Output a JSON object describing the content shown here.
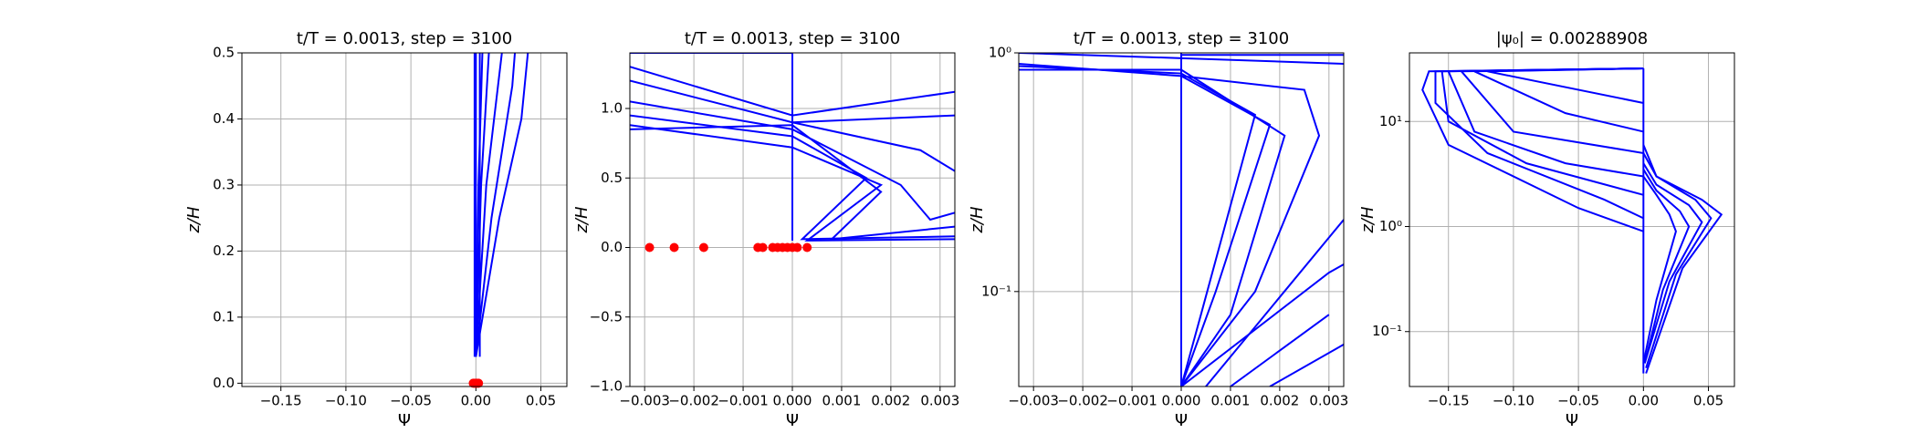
{
  "chart_data": [
    {
      "type": "line",
      "title": "t/T = 0.0013, step = 3100",
      "xlabel": "Ψ",
      "ylabel": "z/H",
      "grid": true,
      "yscale": "linear",
      "xlim": [
        -0.18,
        0.07
      ],
      "ylim": [
        -0.005,
        0.5
      ],
      "xticks": [
        {
          "value": -0.15,
          "label": "−0.15"
        },
        {
          "value": -0.1,
          "label": "−0.10"
        },
        {
          "value": -0.05,
          "label": "−0.05"
        },
        {
          "value": 0,
          "label": "0.00"
        },
        0.05
      ],
      "yticks": [
        {
          "value": 0,
          "label": "0.0"
        },
        0.1,
        0.2,
        0.3,
        0.4,
        0.5
      ],
      "series": [
        {
          "color": "#0000ff",
          "x": [
            -0.001,
            -0.001
          ],
          "values": [
            0.04,
            0.5
          ]
        },
        {
          "color": "#0000ff",
          "x": [
            0.0,
            0.0
          ],
          "values": [
            0.04,
            0.5
          ]
        },
        {
          "color": "#0000ff",
          "x": [
            0.003,
            0.003
          ],
          "values": [
            0.04,
            0.5
          ]
        },
        {
          "color": "#0000ff",
          "x": [
            0.0,
            0.002,
            0.005
          ],
          "values": [
            0.04,
            0.3,
            0.5
          ]
        },
        {
          "color": "#0000ff",
          "x": [
            0.0,
            0.004,
            0.01
          ],
          "values": [
            0.04,
            0.3,
            0.5
          ]
        },
        {
          "color": "#0000ff",
          "x": [
            0.0,
            0.008,
            0.02
          ],
          "values": [
            0.04,
            0.3,
            0.5
          ]
        },
        {
          "color": "#0000ff",
          "x": [
            0.0,
            0.012,
            0.028,
            0.03
          ],
          "values": [
            0.04,
            0.25,
            0.45,
            0.5
          ]
        },
        {
          "color": "#0000ff",
          "x": [
            0.0,
            0.018,
            0.035,
            0.04
          ],
          "values": [
            0.04,
            0.25,
            0.4,
            0.5
          ]
        }
      ],
      "scatter": {
        "color": "#ff0000",
        "x": [
          -0.002,
          -0.001,
          0.0,
          0.001,
          0.002
        ],
        "values": [
          0,
          0,
          0,
          0,
          0
        ]
      }
    },
    {
      "type": "line",
      "title": "t/T = 0.0013, step = 3100",
      "xlabel": "Ψ",
      "ylabel": "z/H",
      "grid": true,
      "yscale": "linear",
      "xlim": [
        -0.0033,
        0.0033
      ],
      "ylim": [
        -1.0,
        1.4
      ],
      "xticks": [
        {
          "value": -0.003,
          "label": "−0.003"
        },
        {
          "value": -0.002,
          "label": "−0.002"
        },
        {
          "value": -0.001,
          "label": "−0.001"
        },
        {
          "value": 0,
          "label": "0.000"
        },
        0.001,
        0.002,
        0.003
      ],
      "yticks": [
        {
          "value": -1,
          "label": "−1.0"
        },
        {
          "value": -0.5,
          "label": "−0.5"
        },
        {
          "value": 0,
          "label": "0.0"
        },
        0.5,
        {
          "value": 1,
          "label": "1.0"
        }
      ],
      "series": [
        {
          "color": "#0000ff",
          "x": [
            0.0,
            0.0
          ],
          "values": [
            0.05,
            1.4
          ]
        },
        {
          "color": "#0000ff",
          "x": [
            -0.0033,
            0.0,
            0.0
          ],
          "values": [
            1.4,
            1.4,
            0.05
          ]
        },
        {
          "color": "#0000ff",
          "x": [
            -0.0033,
            0.0,
            0.0018,
            0.0003,
            0.0033
          ],
          "values": [
            0.88,
            0.72,
            0.45,
            0.05,
            0.06
          ]
        },
        {
          "color": "#0000ff",
          "x": [
            -0.0033,
            0.0,
            0.0015,
            0.0002,
            0.0033
          ],
          "values": [
            0.95,
            0.8,
            0.5,
            0.06,
            0.08
          ]
        },
        {
          "color": "#0000ff",
          "x": [
            -0.0033,
            0.0,
            0.0018,
            0.0008,
            0.0033
          ],
          "values": [
            0.85,
            0.88,
            0.4,
            0.06,
            0.15
          ]
        },
        {
          "color": "#0000ff",
          "x": [
            -0.0033,
            0.0,
            0.0022,
            0.0028,
            0.0033
          ],
          "values": [
            1.05,
            0.85,
            0.45,
            0.2,
            0.25
          ]
        },
        {
          "color": "#0000ff",
          "x": [
            -0.0033,
            0.0,
            0.0026,
            0.0033
          ],
          "values": [
            1.2,
            0.9,
            0.7,
            0.55
          ]
        },
        {
          "color": "#0000ff",
          "x": [
            -0.0033,
            0.0,
            0.0033
          ],
          "values": [
            1.3,
            0.95,
            1.12
          ]
        },
        {
          "color": "#0000ff",
          "x": [
            0.0,
            0.0033
          ],
          "values": [
            0.9,
            0.95
          ]
        }
      ],
      "scatter": {
        "color": "#ff0000",
        "x": [
          -0.0029,
          -0.0024,
          -0.0018,
          -0.0007,
          -0.0006,
          -0.0004,
          -0.0003,
          -0.0002,
          -0.0001,
          0.0,
          0.0001,
          0.0003
        ],
        "values": [
          0,
          0,
          0,
          0,
          0,
          0,
          0,
          0,
          0,
          0,
          0,
          0
        ]
      }
    },
    {
      "type": "line",
      "title": "t/T = 0.0013, step = 3100",
      "xlabel": "Ψ",
      "ylabel": "z/H",
      "grid": true,
      "yscale": "log",
      "xlim": [
        -0.0033,
        0.0033
      ],
      "ylim": [
        0.04,
        1
      ],
      "xticks": [
        {
          "value": -0.003,
          "label": "−0.003"
        },
        {
          "value": -0.002,
          "label": "−0.002"
        },
        {
          "value": -0.001,
          "label": "−0.001"
        },
        {
          "value": 0,
          "label": "0.000"
        },
        0.001,
        0.002,
        0.003
      ],
      "yticks": [
        {
          "value": 0.1,
          "label": "10⁻¹"
        },
        {
          "value": 1,
          "label": "10⁰"
        }
      ],
      "series": [
        {
          "color": "#0000ff",
          "x": [
            0.0,
            0.0
          ],
          "values": [
            0.04,
            1
          ]
        },
        {
          "color": "#0000ff",
          "x": [
            -0.0033,
            0.0,
            0.0
          ],
          "values": [
            1,
            0.95,
            0.04
          ]
        },
        {
          "color": "#0000ff",
          "x": [
            -0.0033,
            0.0,
            0.0018,
            0.0007,
            0.0
          ],
          "values": [
            0.9,
            0.8,
            0.5,
            0.1,
            0.04
          ]
        },
        {
          "color": "#0000ff",
          "x": [
            -0.0033,
            0.0,
            0.0015,
            0.0004,
            0.0
          ],
          "values": [
            0.88,
            0.82,
            0.55,
            0.08,
            0.04
          ]
        },
        {
          "color": "#0000ff",
          "x": [
            -0.0033,
            0.0,
            0.0021,
            0.001,
            0.0
          ],
          "values": [
            0.85,
            0.85,
            0.45,
            0.08,
            0.04
          ]
        },
        {
          "color": "#0000ff",
          "x": [
            0.0,
            0.0025,
            0.0028,
            0.0015,
            0.0
          ],
          "values": [
            0.8,
            0.7,
            0.45,
            0.1,
            0.04
          ]
        },
        {
          "color": "#0000ff",
          "x": [
            0.0,
            0.0033
          ],
          "values": [
            0.95,
            0.9
          ]
        },
        {
          "color": "#0000ff",
          "x": [
            0.0,
            0.0033
          ],
          "values": [
            0.98,
            0.98
          ]
        },
        {
          "color": "#0000ff",
          "x": [
            0.0,
            0.003,
            0.0033
          ],
          "values": [
            0.04,
            0.12,
            0.13
          ]
        },
        {
          "color": "#0000ff",
          "x": [
            0.001,
            0.003
          ],
          "values": [
            0.04,
            0.08
          ]
        },
        {
          "color": "#0000ff",
          "x": [
            0.0018,
            0.0033
          ],
          "values": [
            0.04,
            0.06
          ]
        },
        {
          "color": "#0000ff",
          "x": [
            0.0005,
            0.0033
          ],
          "values": [
            0.04,
            0.2
          ]
        }
      ]
    },
    {
      "type": "line",
      "title": "|ψ₀| = 0.00288908",
      "xlabel": "Ψ",
      "ylabel": "z/H",
      "grid": true,
      "yscale": "log",
      "xlim": [
        -0.18,
        0.07
      ],
      "ylim": [
        0.03,
        45
      ],
      "xticks": [
        {
          "value": -0.15,
          "label": "−0.15"
        },
        {
          "value": -0.1,
          "label": "−0.10"
        },
        {
          "value": -0.05,
          "label": "−0.05"
        },
        {
          "value": 0,
          "label": "0.00"
        },
        0.05
      ],
      "yticks": [
        {
          "value": 0.1,
          "label": "10⁻¹"
        },
        {
          "value": 1,
          "label": "10⁰"
        },
        {
          "value": 10,
          "label": "10¹"
        }
      ],
      "series": [
        {
          "color": "#0000ff",
          "x": [
            0.0,
            0.0
          ],
          "values": [
            0.04,
            32
          ]
        },
        {
          "color": "#0000ff",
          "x": [
            0.0,
            -0.165,
            -0.17,
            -0.15,
            -0.05,
            0.0
          ],
          "values": [
            32,
            30,
            20,
            6,
            1.5,
            0.9
          ]
        },
        {
          "color": "#0000ff",
          "x": [
            0.0,
            -0.16,
            -0.16,
            -0.12,
            -0.03,
            0.0
          ],
          "values": [
            32,
            30,
            15,
            5,
            1.8,
            1.2
          ]
        },
        {
          "color": "#0000ff",
          "x": [
            0.0,
            -0.155,
            -0.15,
            -0.09,
            0.0
          ],
          "values": [
            32,
            30,
            10,
            4,
            2
          ]
        },
        {
          "color": "#0000ff",
          "x": [
            0.0,
            -0.15,
            -0.13,
            -0.06,
            0.0
          ],
          "values": [
            32,
            30,
            8,
            4,
            3
          ]
        },
        {
          "color": "#0000ff",
          "x": [
            0.0,
            -0.14,
            -0.1,
            0.0
          ],
          "values": [
            32,
            30,
            8,
            5
          ]
        },
        {
          "color": "#0000ff",
          "x": [
            0.0,
            -0.13,
            -0.06,
            0.0
          ],
          "values": [
            32,
            30,
            12,
            8
          ]
        },
        {
          "color": "#0000ff",
          "x": [
            0.0,
            -0.12,
            0.0
          ],
          "values": [
            32,
            30,
            15
          ]
        },
        {
          "color": "#0000ff",
          "x": [
            0.0,
            0.01,
            0.045,
            0.06,
            0.03,
            0.002
          ],
          "values": [
            6,
            3,
            1.8,
            1.3,
            0.4,
            0.04
          ]
        },
        {
          "color": "#0000ff",
          "x": [
            0.0,
            0.01,
            0.04,
            0.052,
            0.025,
            0.002
          ],
          "values": [
            5,
            3,
            1.8,
            1.2,
            0.35,
            0.045
          ]
        },
        {
          "color": "#0000ff",
          "x": [
            0.0,
            0.01,
            0.035,
            0.045,
            0.02,
            0.001
          ],
          "values": [
            4,
            2.5,
            1.6,
            1.1,
            0.3,
            0.05
          ]
        },
        {
          "color": "#0000ff",
          "x": [
            0.0,
            0.01,
            0.028,
            0.035,
            0.015,
            0.001
          ],
          "values": [
            3.5,
            2.2,
            1.4,
            1.0,
            0.25,
            0.05
          ]
        },
        {
          "color": "#0000ff",
          "x": [
            0.0,
            0.01,
            0.02,
            0.025,
            0.01,
            0.0
          ],
          "values": [
            3,
            2,
            1.3,
            0.9,
            0.2,
            0.05
          ]
        }
      ]
    }
  ]
}
